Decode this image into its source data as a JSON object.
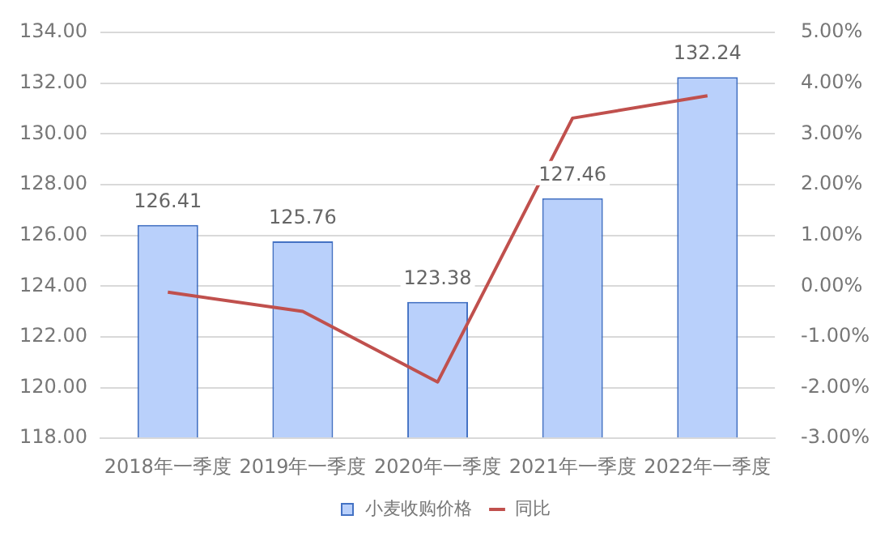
{
  "chart_data": {
    "type": "bar",
    "categories": [
      "2018年一季度",
      "2019年一季度",
      "2020年一季度",
      "2021年一季度",
      "2022年一季度"
    ],
    "series": [
      {
        "name": "小麦收购价格",
        "color": "#b9d0fb",
        "values": [
          126.41,
          125.76,
          123.38,
          127.46,
          132.24
        ],
        "value_labels": [
          "126.41",
          "125.76",
          "123.38",
          "127.46",
          "132.24"
        ]
      },
      {
        "name": "同比",
        "type": "line",
        "axis": "y2",
        "color": "#c0504d",
        "values": [
          -0.12,
          -0.5,
          -1.89,
          3.31,
          3.75
        ]
      }
    ],
    "ylim": [
      118,
      134
    ],
    "yticks": [
      {
        "value": 118,
        "label": "118.00"
      },
      {
        "value": 120,
        "label": "120.00"
      },
      {
        "value": 122,
        "label": "122.00"
      },
      {
        "value": 124,
        "label": "124.00"
      },
      {
        "value": 126,
        "label": "126.00"
      },
      {
        "value": 128,
        "label": "128.00"
      },
      {
        "value": 130,
        "label": "130.00"
      },
      {
        "value": 132,
        "label": "132.00"
      },
      {
        "value": 134,
        "label": "134.00"
      }
    ],
    "y2lim": [
      -3,
      5
    ],
    "y2ticks": [
      {
        "value": -3,
        "label": "-3.00%"
      },
      {
        "value": -2,
        "label": "-2.00%"
      },
      {
        "value": -1,
        "label": "-1.00%"
      },
      {
        "value": 0,
        "label": "0.00%"
      },
      {
        "value": 1,
        "label": "1.00%"
      },
      {
        "value": 2,
        "label": "2.00%"
      },
      {
        "value": 3,
        "label": "3.00%"
      },
      {
        "value": 4,
        "label": "4.00%"
      },
      {
        "value": 5,
        "label": "5.00%"
      }
    ],
    "grid": "y",
    "legend": "bottom",
    "marker": "none",
    "line_style": "solid"
  }
}
